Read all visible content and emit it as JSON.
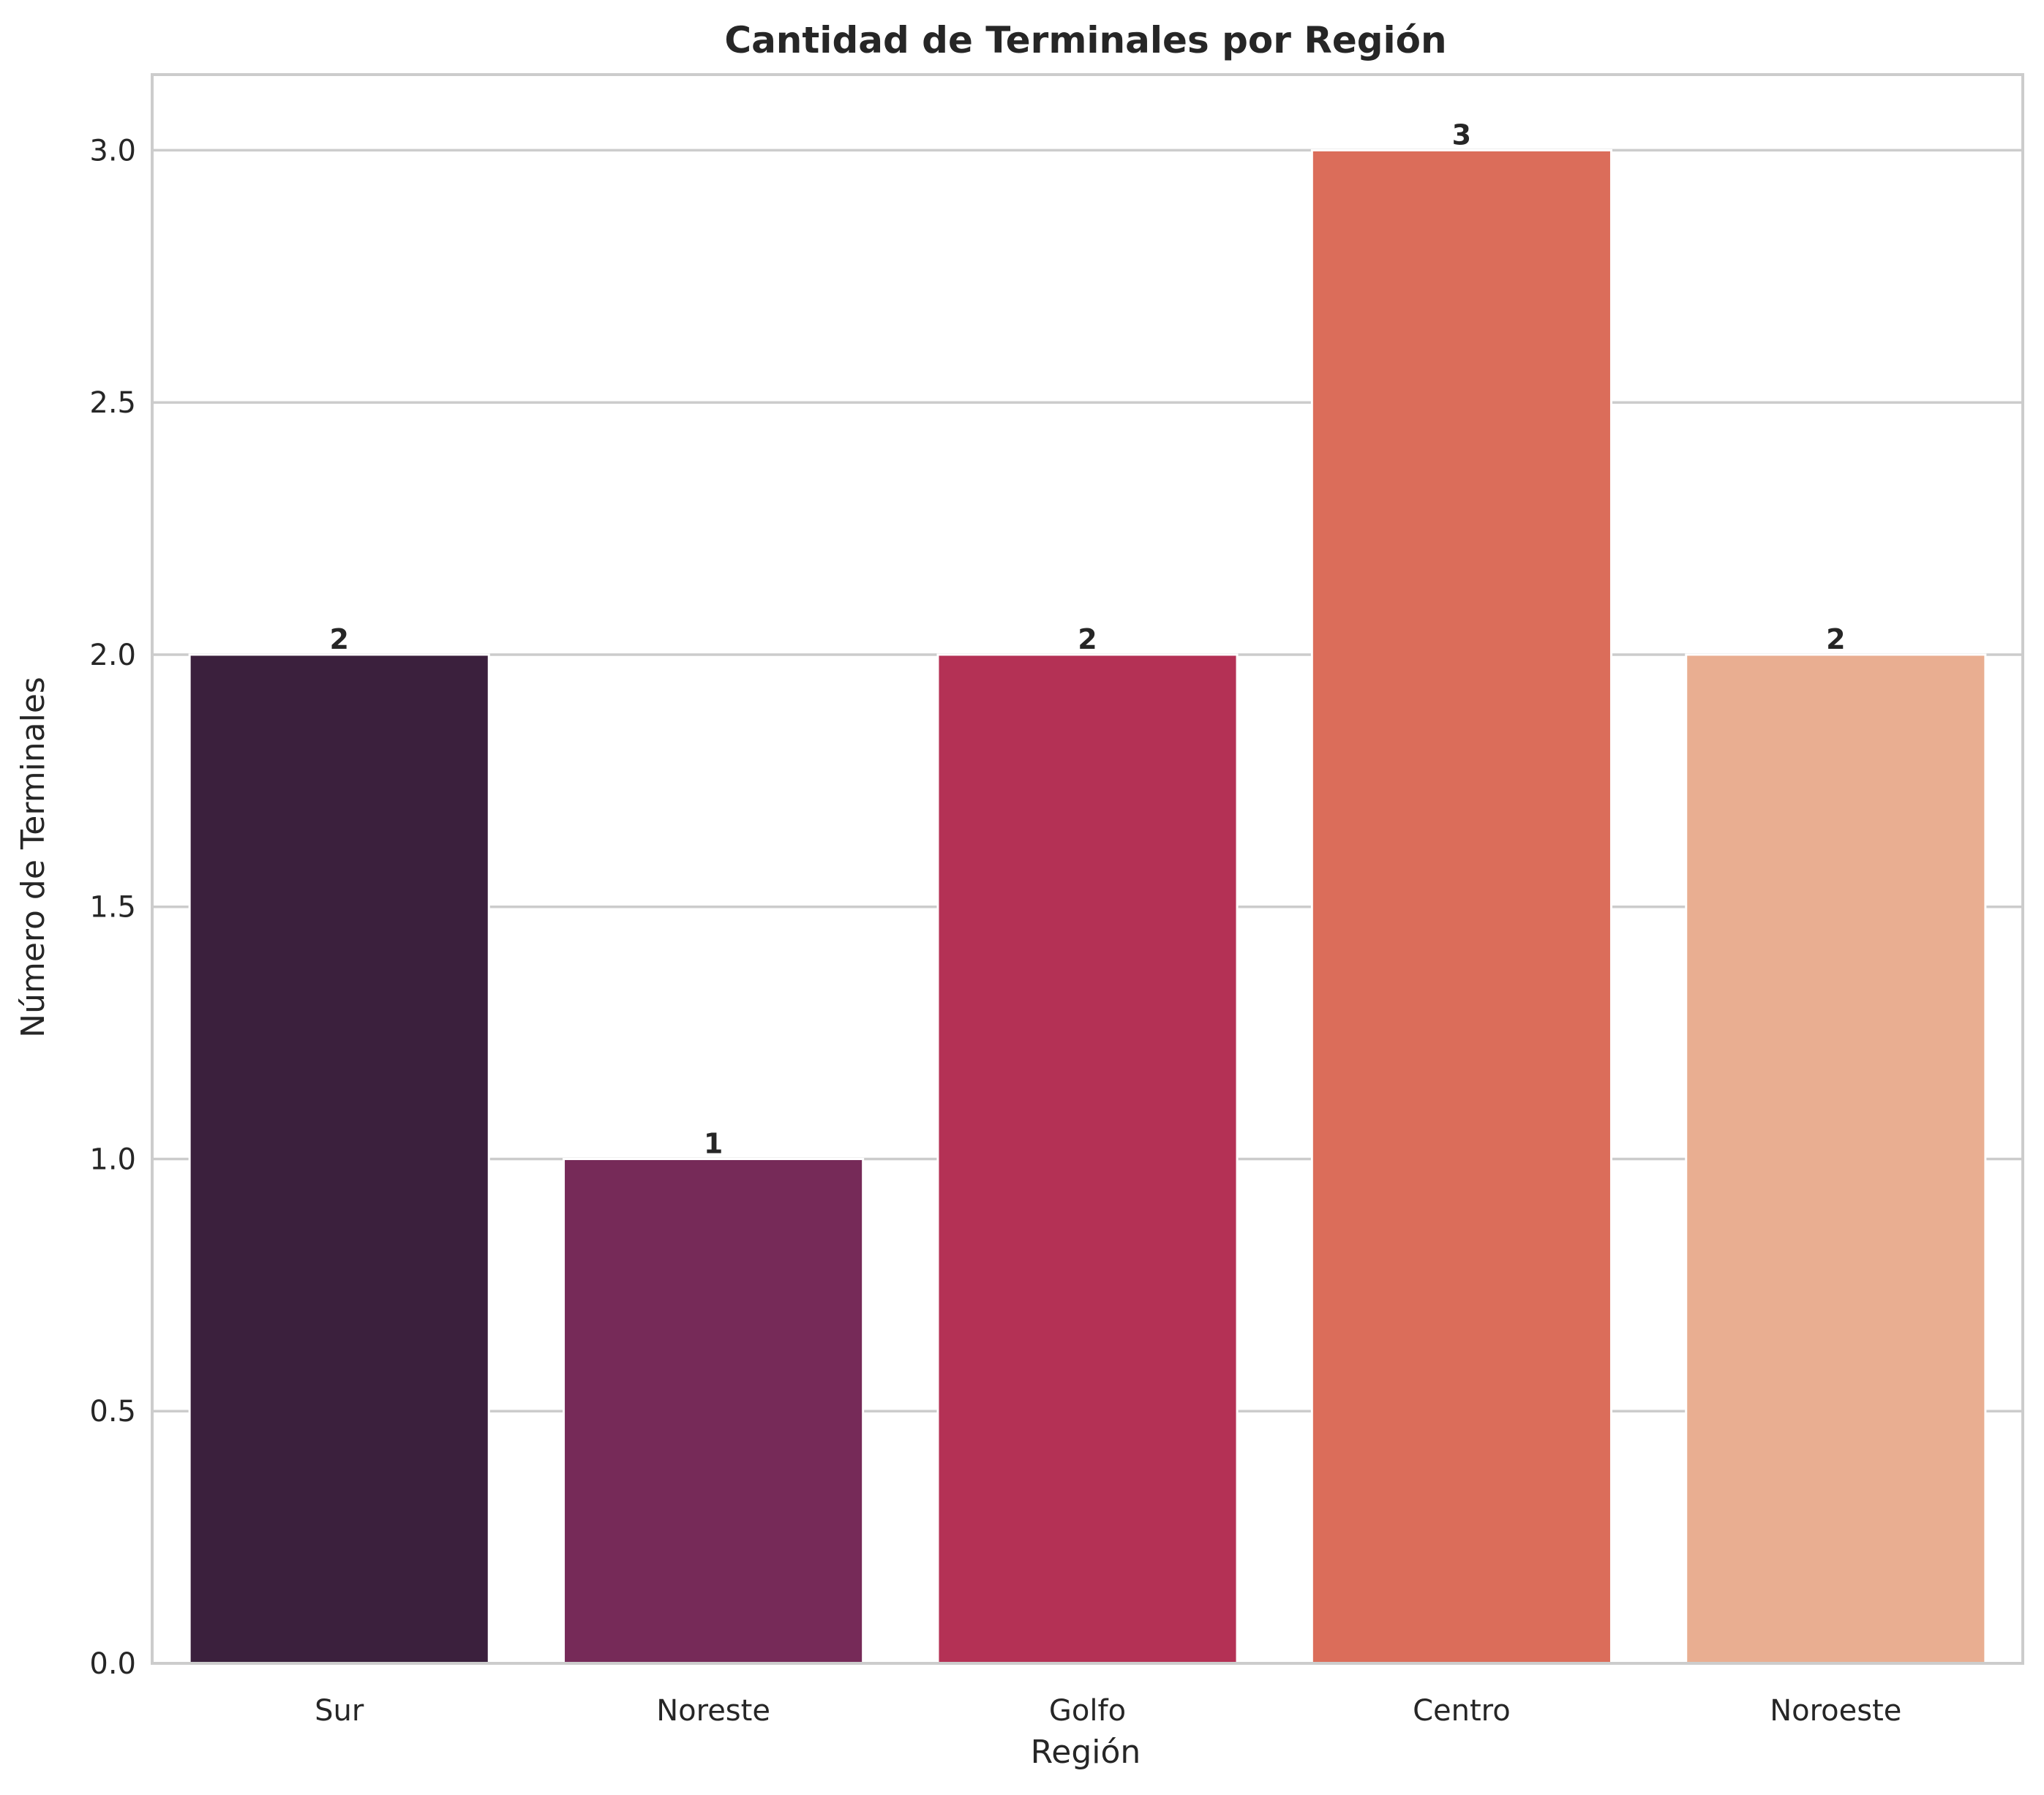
{
  "chart_data": {
    "type": "bar",
    "title": "Cantidad de Terminales por Región",
    "xlabel": "Región",
    "ylabel": "Número de Terminales",
    "categories": [
      "Sur",
      "Noreste",
      "Golfo",
      "Centro",
      "Noroeste"
    ],
    "values": [
      2,
      1,
      2,
      3,
      2
    ],
    "data_labels": [
      "2",
      "1",
      "2",
      "3",
      "2"
    ],
    "ylim": [
      0,
      3.15
    ],
    "yticks": [
      0.0,
      0.5,
      1.0,
      1.5,
      2.0,
      2.5,
      3.0
    ],
    "ytick_labels": [
      "0.0",
      "0.5",
      "1.0",
      "1.5",
      "2.0",
      "2.5",
      "3.0"
    ],
    "grid": true,
    "colors": {
      "bars": [
        "#3b203d",
        "#762a58",
        "#b43155",
        "#db6d5a",
        "#e9ae91"
      ],
      "grid": "#cccccc",
      "spine": "#cccccc",
      "text": "#262626",
      "background": "#ffffff"
    }
  }
}
